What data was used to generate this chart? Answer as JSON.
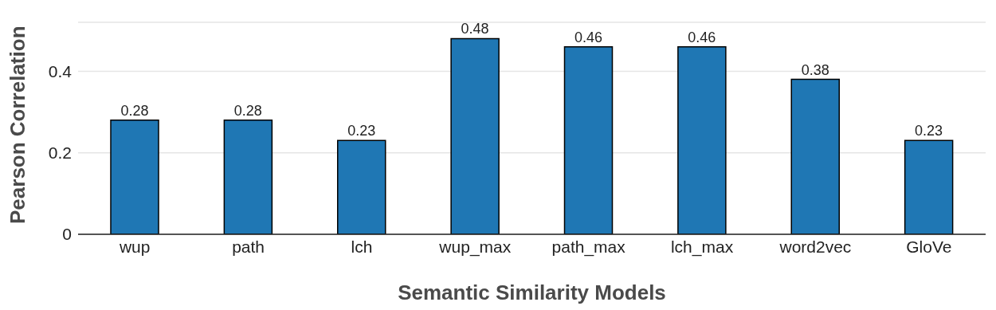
{
  "chart_data": {
    "type": "bar",
    "xlabel": "Semantic Similarity Models",
    "ylabel": "Pearson Correlation",
    "categories": [
      "wup",
      "path",
      "lch",
      "wup_max",
      "path_max",
      "lch_max",
      "word2vec",
      "GloVe"
    ],
    "values": [
      0.28,
      0.28,
      0.23,
      0.48,
      0.46,
      0.46,
      0.38,
      0.23
    ],
    "color": "#1f77b4",
    "ylim": [
      0,
      0.52
    ],
    "yticks": [
      0,
      0.2,
      0.4
    ],
    "grid": "y",
    "data_labels": true
  }
}
